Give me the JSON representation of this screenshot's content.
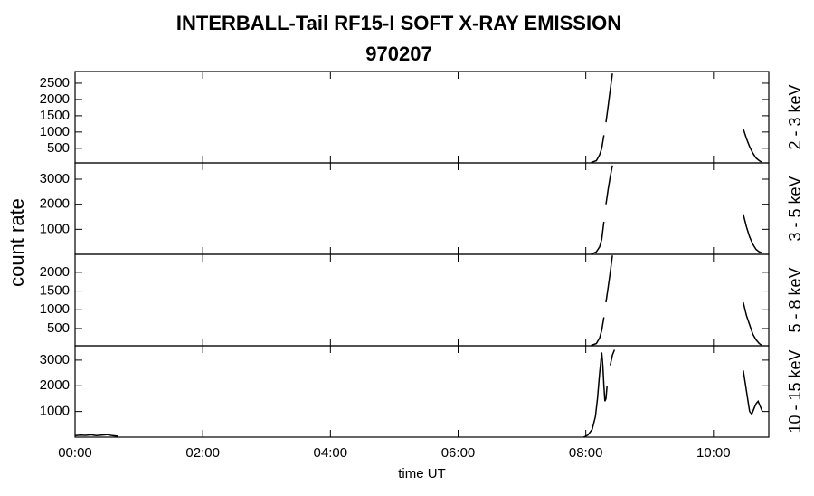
{
  "title": "INTERBALL-Tail RF15-I SOFT X-RAY EMISSION",
  "subtitle": "970207",
  "y_label": "count rate",
  "chart_data": [
    {
      "type": "line",
      "right_label": "2 - 3 keV",
      "color": "#000000",
      "xlim": [
        "00:00",
        "10:52"
      ],
      "xticks": [
        "00:00",
        "02:00",
        "04:00",
        "06:00",
        "08:00",
        "10:00"
      ],
      "ylim": [
        50,
        2860
      ],
      "yticks": [
        500,
        1000,
        1500,
        2000,
        2500
      ],
      "x": [
        "08:05",
        "08:10",
        "08:13",
        "08:15",
        "08:17",
        null,
        "08:19",
        "08:21",
        "08:23",
        "08:25",
        null,
        "10:28",
        "10:31",
        "10:34",
        "10:37",
        "10:40",
        "10:43",
        "10:45"
      ],
      "values": [
        60,
        120,
        300,
        500,
        900,
        null,
        1300,
        1800,
        2300,
        2800,
        null,
        1100,
        800,
        550,
        350,
        200,
        120,
        80
      ]
    },
    {
      "type": "line",
      "right_label": "3 - 5 keV",
      "color": "#000000",
      "xlim": [
        "00:00",
        "10:52"
      ],
      "xticks": [
        "00:00",
        "02:00",
        "04:00",
        "06:00",
        "08:00",
        "10:00"
      ],
      "ylim": [
        0,
        3650
      ],
      "yticks": [
        1000,
        2000,
        3000
      ],
      "x": [
        "08:05",
        "08:10",
        "08:13",
        "08:15",
        "08:17",
        null,
        "08:19",
        "08:21",
        "08:23",
        "08:25",
        null,
        "10:28",
        "10:31",
        "10:34",
        "10:37",
        "10:40",
        "10:43",
        "10:45"
      ],
      "values": [
        0,
        100,
        300,
        600,
        1300,
        null,
        2000,
        2600,
        3100,
        3550,
        null,
        1600,
        1100,
        700,
        400,
        200,
        100,
        70
      ]
    },
    {
      "type": "line",
      "right_label": "5 - 8 keV",
      "color": "#000000",
      "xlim": [
        "00:00",
        "10:52"
      ],
      "xticks": [
        "00:00",
        "02:00",
        "04:00",
        "06:00",
        "08:00",
        "10:00"
      ],
      "ylim": [
        40,
        2480
      ],
      "yticks": [
        500,
        1000,
        1500,
        2000
      ],
      "x": [
        "08:05",
        "08:10",
        "08:13",
        "08:15",
        "08:17",
        null,
        "08:19",
        "08:21",
        "08:23",
        "08:25",
        null,
        "10:28",
        "10:31",
        "10:34",
        "10:37",
        "10:40",
        "10:43",
        "10:45"
      ],
      "values": [
        50,
        100,
        250,
        450,
        800,
        null,
        1200,
        1600,
        2000,
        2450,
        null,
        1200,
        850,
        600,
        350,
        200,
        100,
        60
      ]
    },
    {
      "type": "line",
      "right_label": "10 - 15 keV",
      "color": "#000000",
      "x_label": "time UT",
      "xlim": [
        "00:00",
        "10:52"
      ],
      "xticks": [
        "00:00",
        "02:00",
        "04:00",
        "06:00",
        "08:00",
        "10:00"
      ],
      "ylim": [
        0,
        3560
      ],
      "yticks": [
        1000,
        2000,
        3000
      ],
      "x": [
        "00:00",
        "00:05",
        "00:10",
        "00:15",
        "00:20",
        "00:25",
        "00:30",
        "00:35",
        "00:40",
        null,
        "07:58",
        "08:02",
        "08:06",
        "08:09",
        "08:11",
        "08:13",
        "08:15",
        "08:16",
        "08:17",
        "08:18",
        "08:19",
        "08:20",
        null,
        "08:23",
        "08:25",
        "08:27",
        null,
        "10:28",
        "10:31",
        "10:34",
        "10:36",
        "10:38",
        "10:40",
        "10:42",
        "10:44",
        "10:46"
      ],
      "values": [
        60,
        80,
        70,
        90,
        60,
        80,
        100,
        60,
        40,
        null,
        0,
        80,
        300,
        800,
        1500,
        2500,
        3300,
        2800,
        2000,
        1400,
        1500,
        2000,
        null,
        2800,
        3200,
        3400,
        null,
        2600,
        1800,
        1000,
        900,
        1100,
        1300,
        1400,
        1200,
        1000
      ]
    }
  ]
}
